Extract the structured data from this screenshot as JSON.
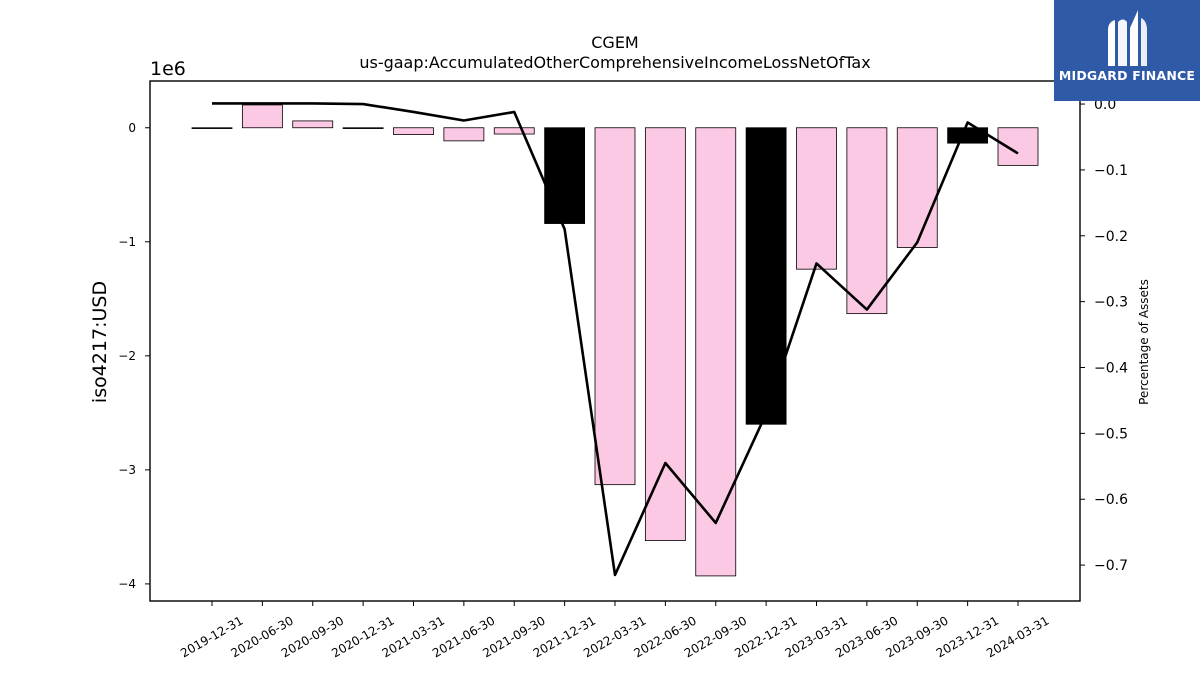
{
  "chart_data": {
    "type": "bar",
    "title": "CGEM",
    "subtitle": "us-gaap:AccumulatedOtherComprehensiveIncomeLossNetOfTax",
    "ylabel": "iso4217:USD",
    "y_exponent_label": "1e6",
    "y2label": "Percentage of Assets",
    "categories": [
      "2019-12-31",
      "2020-06-30",
      "2020-09-30",
      "2020-12-31",
      "2021-03-31",
      "2021-06-30",
      "2021-09-30",
      "2021-12-31",
      "2022-03-31",
      "2022-06-30",
      "2022-09-30",
      "2022-12-31",
      "2023-03-31",
      "2023-06-30",
      "2023-09-30",
      "2023-12-31",
      "2024-03-31"
    ],
    "series": [
      {
        "kind": "bar",
        "values": [
          0,
          200000,
          60000,
          0,
          -60000,
          -115000,
          -55000,
          -840000,
          -3130000,
          -3620000,
          -3930000,
          -2600000,
          -1240000,
          -1630000,
          -1050000,
          -135000,
          -330000
        ],
        "colors": [
          "#fcc9e4",
          "#fcc9e4",
          "#fcc9e4",
          "#fcc9e4",
          "#fcc9e4",
          "#fcc9e4",
          "#fcc9e4",
          "#000000",
          "#fcc9e4",
          "#fcc9e4",
          "#fcc9e4",
          "#000000",
          "#fcc9e4",
          "#fcc9e4",
          "#fcc9e4",
          "#000000",
          "#fcc9e4"
        ]
      },
      {
        "kind": "line",
        "axis": "right",
        "values": [
          0.001,
          0.001,
          0.001,
          0.0,
          -0.012,
          -0.025,
          -0.012,
          -0.19,
          -0.715,
          -0.545,
          -0.636,
          -0.47,
          -0.242,
          -0.312,
          -0.21,
          -0.028,
          -0.075
        ],
        "color": "#000000"
      }
    ],
    "ylim": [
      -4150000,
      410000
    ],
    "yticks": [
      0,
      -1,
      -2,
      -3,
      -4
    ],
    "y2lim": [
      -0.7545,
      0.035
    ],
    "y2ticks": [
      "0.0",
      "−0.1",
      "−0.2",
      "−0.3",
      "−0.4",
      "−0.5",
      "−0.6",
      "−0.7"
    ]
  },
  "logo": {
    "text": "MIDGARD FINANCE",
    "brand_color": "#2f5aa8"
  }
}
